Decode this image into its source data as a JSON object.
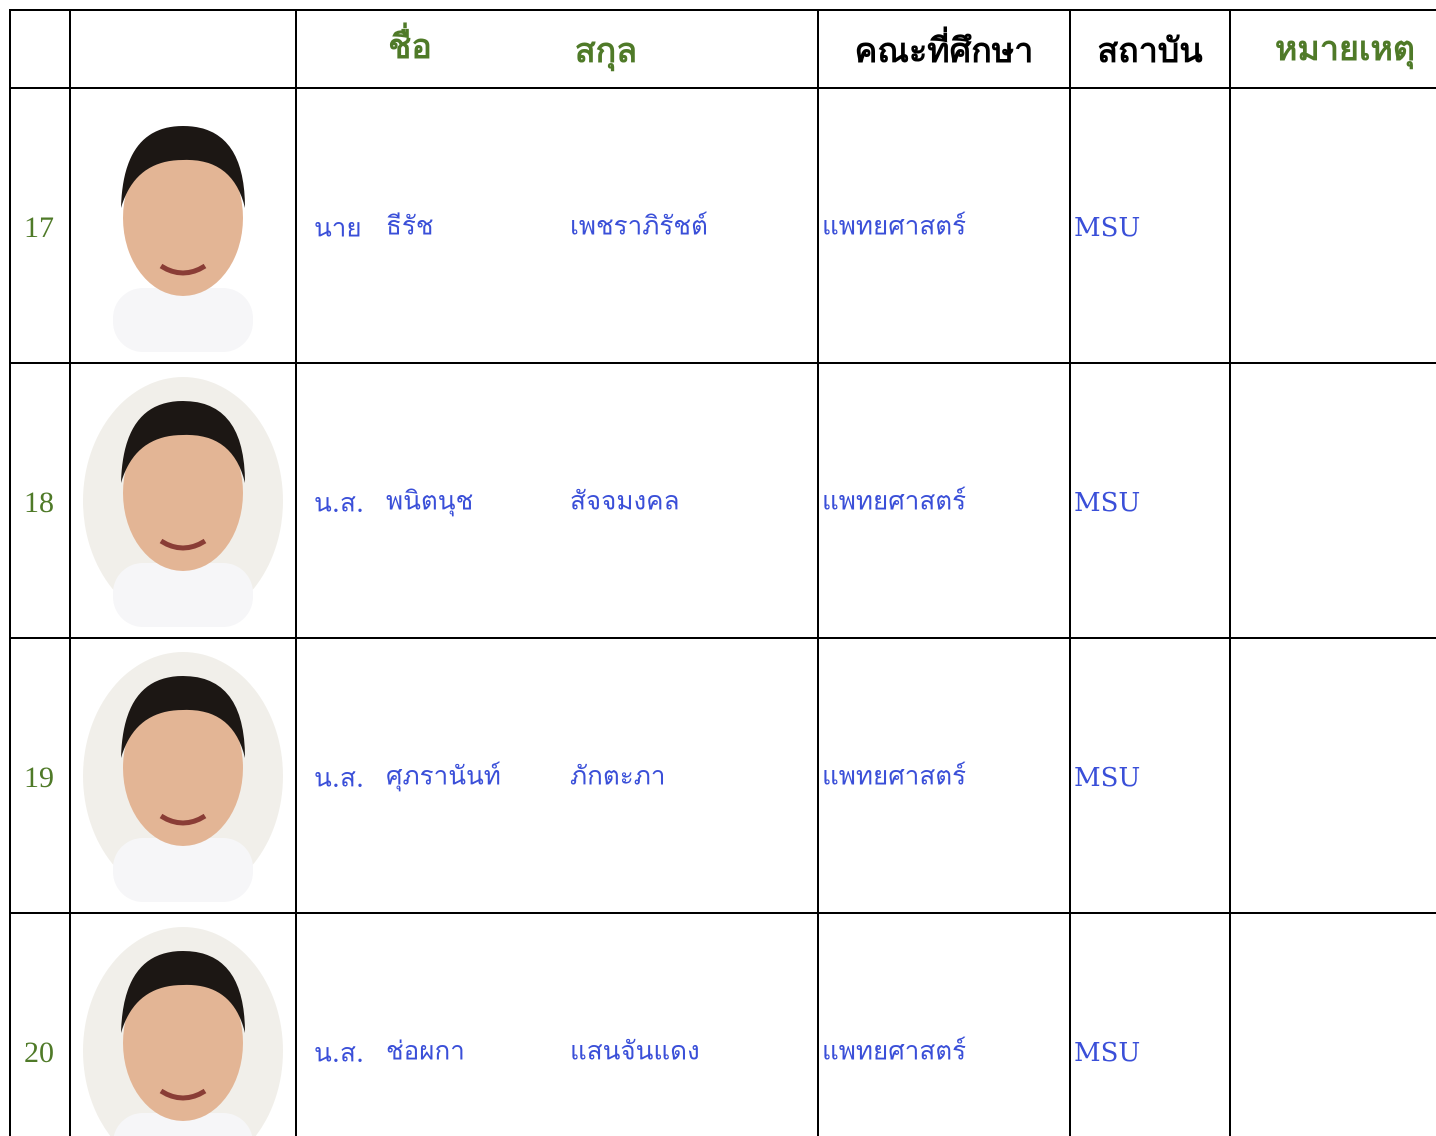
{
  "header": {
    "name": "ชื่อ",
    "surname": "สกุล",
    "faculty": "คณะที่ศึกษา",
    "institute": "สถาบัน",
    "remark": "หมายเหตุ"
  },
  "rows": [
    {
      "number": 17,
      "title": "นาย",
      "first_name": "ธีรัช",
      "last_name": "เพชราภิรัชต์",
      "faculty": "แพทยศาสตร์",
      "institute": "MSU"
    },
    {
      "number": 18,
      "title": "น.ส.",
      "first_name": "พนิตนุช",
      "last_name": "สัจจมงคล",
      "faculty": "แพทยศาสตร์",
      "institute": "MSU"
    },
    {
      "number": 19,
      "title": "น.ส.",
      "first_name": "ศุภรานันท์",
      "last_name": "ภักตะภา",
      "faculty": "แพทยศาสตร์",
      "institute": "MSU"
    },
    {
      "number": 20,
      "title": "น.ส.",
      "first_name": "ช่อผกา",
      "last_name": "แสนจันแดง",
      "faculty": "แพทยศาสตร์",
      "institute": "MSU"
    }
  ]
}
